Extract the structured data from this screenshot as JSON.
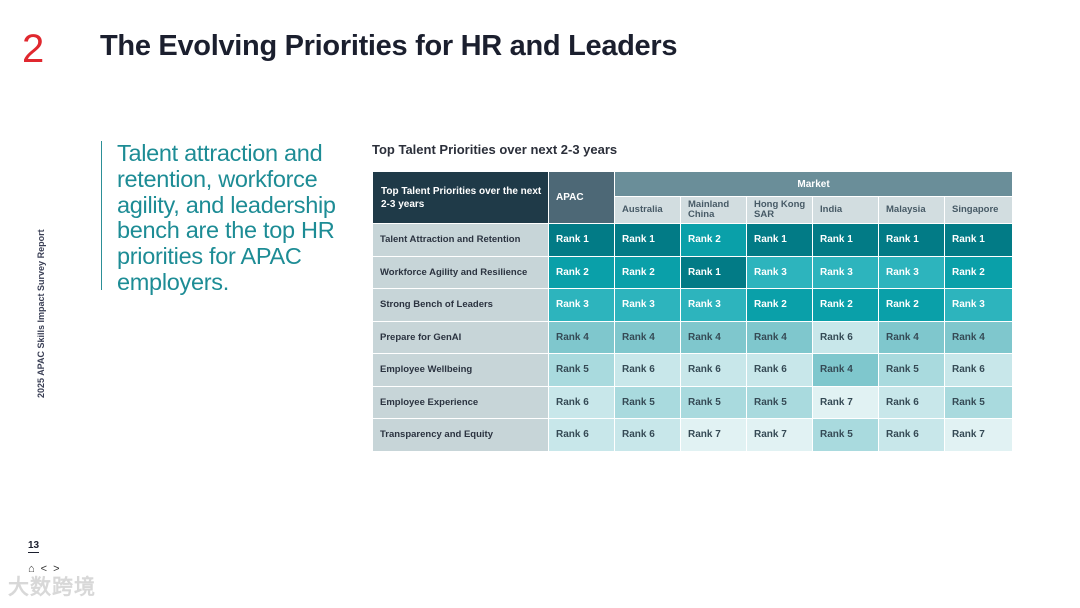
{
  "section_number": "2",
  "title": "The Evolving Priorities for HR and Leaders",
  "side_text": "2025 APAC Skills Impact Survey Report",
  "page_number": "13",
  "nav": {
    "home": "⌂",
    "prev": "<",
    "next": ">"
  },
  "watermark": "大数跨境",
  "callout": "Talent attraction and retention, workforce agility, and leadership bench are the top HR priorities for APAC employers.",
  "table_title": "Top Talent Priorities over next 2-3 years",
  "table": {
    "corner_label": "Top Talent Priorities over the next 2-3 years",
    "apac_label": "APAC",
    "market_label": "Market",
    "markets": [
      "Australia",
      "Mainland China",
      "Hong Kong SAR",
      "India",
      "Malaysia",
      "Singapore"
    ],
    "rows": [
      {
        "label": "Talent Attraction and Retention",
        "ranks": [
          "Rank 1",
          "Rank 1",
          "Rank 2",
          "Rank 1",
          "Rank 1",
          "Rank 1",
          "Rank 1"
        ]
      },
      {
        "label": "Workforce Agility and Resilience",
        "ranks": [
          "Rank 2",
          "Rank 2",
          "Rank 1",
          "Rank 3",
          "Rank 3",
          "Rank 3",
          "Rank 2"
        ]
      },
      {
        "label": "Strong Bench of Leaders",
        "ranks": [
          "Rank 3",
          "Rank 3",
          "Rank 3",
          "Rank 2",
          "Rank 2",
          "Rank 2",
          "Rank 3"
        ]
      },
      {
        "label": "Prepare for GenAI",
        "ranks": [
          "Rank 4",
          "Rank 4",
          "Rank 4",
          "Rank 4",
          "Rank 6",
          "Rank 4",
          "Rank 4"
        ]
      },
      {
        "label": "Employee Wellbeing",
        "ranks": [
          "Rank 5",
          "Rank 6",
          "Rank 6",
          "Rank 6",
          "Rank 4",
          "Rank 5",
          "Rank 6"
        ]
      },
      {
        "label": "Employee Experience",
        "ranks": [
          "Rank 6",
          "Rank 5",
          "Rank 5",
          "Rank 5",
          "Rank 7",
          "Rank 6",
          "Rank 5"
        ]
      },
      {
        "label": "Transparency and Equity",
        "ranks": [
          "Rank 6",
          "Rank 6",
          "Rank 7",
          "Rank 7",
          "Rank 5",
          "Rank 6",
          "Rank 7"
        ]
      }
    ]
  }
}
